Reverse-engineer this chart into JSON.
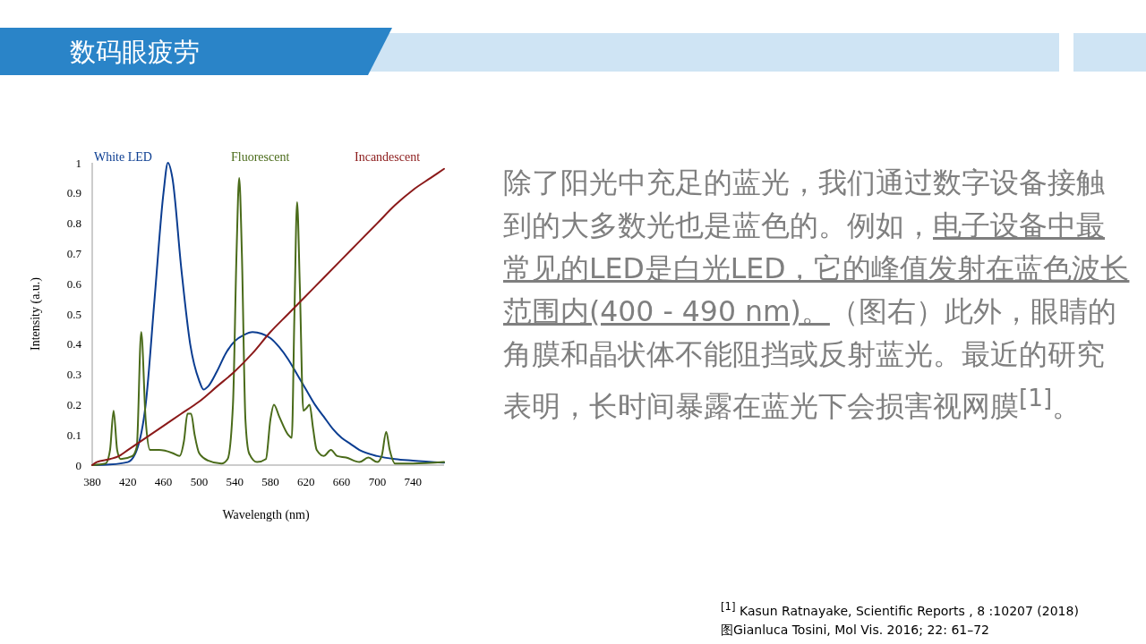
{
  "chart_data": {
    "type": "line",
    "title": "数码眼疲劳",
    "xlabel": "Wavelength (nm)",
    "ylabel": "Intensity (a.u.)",
    "xlim": [
      380,
      775
    ],
    "xticks": [
      380,
      420,
      460,
      500,
      540,
      580,
      620,
      660,
      700,
      740
    ],
    "ylim": [
      0,
      1
    ],
    "yticks": [
      0,
      0.1,
      0.2,
      0.3,
      0.4,
      0.5,
      0.6,
      0.7,
      0.8,
      0.9,
      1
    ],
    "grid": false,
    "legend": "top",
    "marker": "none",
    "line_style": "solid",
    "series": [
      {
        "name": "White LED",
        "color": "#0b3d91",
        "x": [
          380,
          400,
          420,
          430,
          440,
          450,
          460,
          465,
          470,
          480,
          490,
          500,
          505,
          510,
          520,
          530,
          540,
          550,
          560,
          570,
          580,
          590,
          600,
          610,
          620,
          630,
          640,
          650,
          660,
          670,
          680,
          700,
          720,
          740,
          775
        ],
        "values": [
          0,
          0.002,
          0.01,
          0.05,
          0.2,
          0.55,
          0.9,
          1.0,
          0.95,
          0.65,
          0.4,
          0.28,
          0.25,
          0.26,
          0.31,
          0.37,
          0.41,
          0.43,
          0.44,
          0.435,
          0.42,
          0.39,
          0.35,
          0.3,
          0.25,
          0.2,
          0.16,
          0.12,
          0.09,
          0.07,
          0.05,
          0.03,
          0.02,
          0.015,
          0.008
        ]
      },
      {
        "name": "Fluorescent",
        "color": "#4a6b1a",
        "x": [
          380,
          395,
          400,
          404,
          408,
          412,
          425,
          430,
          435,
          440,
          445,
          455,
          470,
          478,
          483,
          487,
          491,
          495,
          500,
          510,
          525,
          532,
          538,
          542,
          545,
          548,
          552,
          556,
          565,
          575,
          580,
          584,
          590,
          600,
          604,
          607,
          610,
          613,
          617,
          621,
          624,
          628,
          632,
          640,
          648,
          655,
          665,
          680,
          690,
          700,
          705,
          710,
          714,
          720,
          740,
          775
        ],
        "values": [
          0,
          0.005,
          0.05,
          0.18,
          0.05,
          0.02,
          0.03,
          0.06,
          0.44,
          0.15,
          0.05,
          0.05,
          0.04,
          0.03,
          0.08,
          0.17,
          0.17,
          0.1,
          0.04,
          0.015,
          0.005,
          0.02,
          0.2,
          0.7,
          0.95,
          0.7,
          0.15,
          0.04,
          0.01,
          0.02,
          0.15,
          0.2,
          0.16,
          0.1,
          0.09,
          0.5,
          0.87,
          0.6,
          0.18,
          0.19,
          0.2,
          0.12,
          0.05,
          0.03,
          0.05,
          0.03,
          0.025,
          0.01,
          0.025,
          0.01,
          0.03,
          0.11,
          0.05,
          0.005,
          0.005,
          0.01
        ]
      },
      {
        "name": "Incandescent",
        "color": "#8b1a1a",
        "x": [
          380,
          385,
          400,
          410,
          420,
          440,
          460,
          480,
          500,
          520,
          540,
          560,
          580,
          600,
          620,
          640,
          660,
          680,
          700,
          720,
          740,
          760,
          775
        ],
        "values": [
          0,
          0.01,
          0.02,
          0.03,
          0.05,
          0.09,
          0.13,
          0.17,
          0.21,
          0.26,
          0.31,
          0.37,
          0.44,
          0.5,
          0.56,
          0.62,
          0.68,
          0.74,
          0.8,
          0.86,
          0.91,
          0.95,
          0.98
        ]
      }
    ],
    "annotations": [
      "除了阳光中充足的蓝光，我们通过数字设备接触到的大多数光也是蓝色的。例如，",
      "电子设备中最常见的LED是白光LED，它的峰值发射在蓝色波长范围内(400 - 490 nm)。",
      "（图右）此外，眼睛的角膜和晶状体不能阻挡或反射蓝光。最近的研究表明，长时间暴露在蓝光下会损害视网膜$^{[1]}$。",
      "$^{[1]}$ Kasun Ratnayake, Scientific Reports , 8 :10207 (2018)",
      "图Gianluca Tosini, Mol Vis. 2016; 22: 61–72"
    ]
  }
}
